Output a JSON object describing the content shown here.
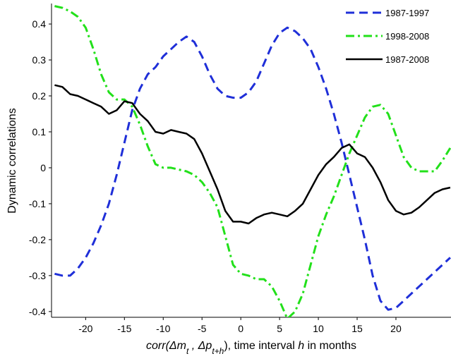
{
  "chart_data": {
    "type": "line",
    "y_label": "Dynamic correlations",
    "x_label_parts": [
      "corr(",
      "Δm",
      "t",
      " , ",
      "Δp",
      "t+h",
      "), time interval   ",
      "h",
      " in months"
    ],
    "x": [
      -24,
      -23,
      -22,
      -21,
      -20,
      -19,
      -18,
      -17,
      -16,
      -15,
      -14,
      -13,
      -12,
      -11,
      -10,
      -9,
      -8,
      -7,
      -6,
      -5,
      -4,
      -3,
      -2,
      -1,
      0,
      1,
      2,
      3,
      4,
      5,
      6,
      7,
      8,
      9,
      10,
      11,
      12,
      13,
      14,
      15,
      16,
      17,
      18,
      19,
      20,
      21,
      22,
      23,
      24,
      25,
      26,
      27
    ],
    "series": [
      {
        "name": "1987-1997",
        "color": "#1f2fd8",
        "style": "dash",
        "values": [
          -0.295,
          -0.3,
          -0.3,
          -0.28,
          -0.25,
          -0.21,
          -0.16,
          -0.1,
          -0.02,
          0.07,
          0.16,
          0.22,
          0.26,
          0.28,
          0.31,
          0.33,
          0.35,
          0.365,
          0.35,
          0.31,
          0.26,
          0.22,
          0.2,
          0.195,
          0.195,
          0.21,
          0.24,
          0.29,
          0.34,
          0.375,
          0.39,
          0.38,
          0.36,
          0.33,
          0.28,
          0.22,
          0.15,
          0.07,
          -0.02,
          -0.11,
          -0.2,
          -0.3,
          -0.37,
          -0.395,
          -0.39,
          -0.37,
          -0.35,
          -0.33,
          -0.31,
          -0.29,
          -0.27,
          -0.25
        ]
      },
      {
        "name": "1998-2008",
        "color": "#22e01a",
        "style": "dashdot",
        "values": [
          0.45,
          0.445,
          0.435,
          0.42,
          0.39,
          0.33,
          0.26,
          0.21,
          0.19,
          0.19,
          0.17,
          0.12,
          0.06,
          0.01,
          0.0,
          0.0,
          -0.005,
          -0.01,
          -0.02,
          -0.04,
          -0.07,
          -0.11,
          -0.19,
          -0.27,
          -0.295,
          -0.3,
          -0.31,
          -0.31,
          -0.33,
          -0.37,
          -0.42,
          -0.4,
          -0.35,
          -0.27,
          -0.19,
          -0.13,
          -0.08,
          -0.02,
          0.04,
          0.09,
          0.14,
          0.17,
          0.175,
          0.15,
          0.09,
          0.03,
          0.0,
          -0.01,
          -0.01,
          -0.01,
          0.02,
          0.055
        ]
      },
      {
        "name": "1987-2008",
        "color": "#000000",
        "style": "solid",
        "values": [
          0.23,
          0.225,
          0.205,
          0.2,
          0.19,
          0.18,
          0.17,
          0.15,
          0.16,
          0.185,
          0.18,
          0.15,
          0.13,
          0.1,
          0.095,
          0.105,
          0.1,
          0.095,
          0.08,
          0.04,
          -0.01,
          -0.06,
          -0.12,
          -0.15,
          -0.15,
          -0.155,
          -0.14,
          -0.13,
          -0.125,
          -0.13,
          -0.135,
          -0.12,
          -0.1,
          -0.06,
          -0.02,
          0.01,
          0.03,
          0.055,
          0.065,
          0.04,
          0.03,
          0.0,
          -0.04,
          -0.09,
          -0.12,
          -0.13,
          -0.125,
          -0.11,
          -0.09,
          -0.07,
          -0.06,
          -0.055
        ]
      }
    ],
    "xlim": [
      -24.4,
      27.1
    ],
    "xticks": [
      -20,
      -15,
      -10,
      -5,
      0,
      5,
      10,
      15,
      20
    ],
    "ylim": [
      -0.416,
      0.457
    ],
    "yticks": [
      -0.4,
      -0.3,
      -0.2,
      -0.1,
      0,
      0.1,
      0.2,
      0.3,
      0.4
    ],
    "grid": false,
    "legend": "upper right"
  }
}
